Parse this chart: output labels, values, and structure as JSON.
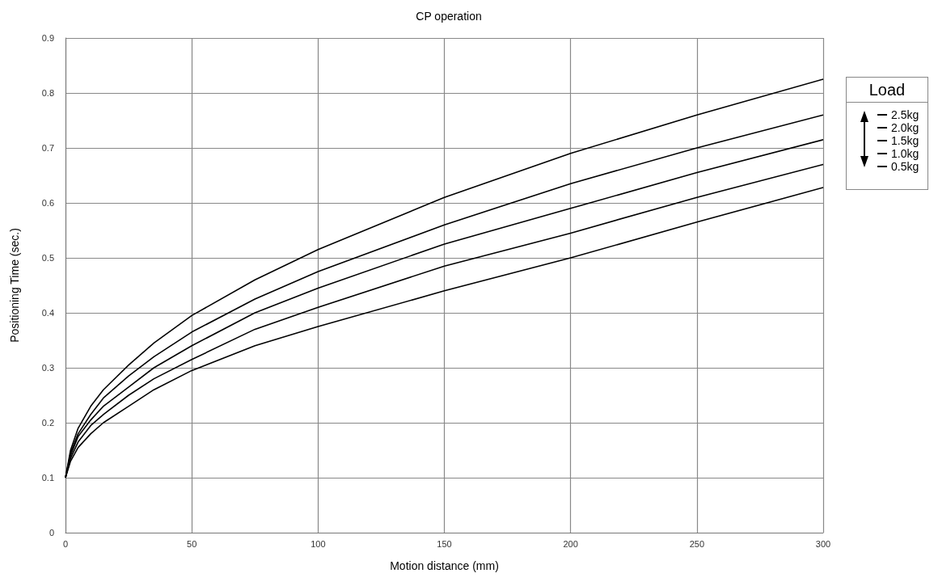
{
  "chart_data": {
    "type": "line",
    "title": "CP operation",
    "xlabel": "Motion distance (mm)",
    "ylabel": "Positioning Time (sec.)",
    "legend_title": "Load",
    "x": [
      0,
      2,
      5,
      10,
      15,
      25,
      35,
      50,
      75,
      100,
      150,
      200,
      250,
      300
    ],
    "series": [
      {
        "name": "2.5kg",
        "color": "#000000",
        "values": [
          0.1,
          0.15,
          0.19,
          0.23,
          0.26,
          0.305,
          0.345,
          0.395,
          0.46,
          0.515,
          0.61,
          0.69,
          0.76,
          0.825
        ]
      },
      {
        "name": "2.0kg",
        "color": "#000000",
        "values": [
          0.1,
          0.145,
          0.18,
          0.215,
          0.245,
          0.285,
          0.32,
          0.365,
          0.425,
          0.475,
          0.56,
          0.635,
          0.7,
          0.76
        ]
      },
      {
        "name": "1.5kg",
        "color": "#000000",
        "values": [
          0.1,
          0.14,
          0.175,
          0.205,
          0.23,
          0.265,
          0.3,
          0.34,
          0.4,
          0.445,
          0.525,
          0.59,
          0.655,
          0.715
        ]
      },
      {
        "name": "1.0kg",
        "color": "#000000",
        "values": [
          0.1,
          0.135,
          0.165,
          0.195,
          0.215,
          0.25,
          0.28,
          0.315,
          0.37,
          0.41,
          0.485,
          0.545,
          0.61,
          0.67
        ]
      },
      {
        "name": "0.5kg",
        "color": "#000000",
        "values": [
          0.1,
          0.13,
          0.155,
          0.18,
          0.2,
          0.23,
          0.26,
          0.295,
          0.34,
          0.375,
          0.44,
          0.5,
          0.565,
          0.628
        ]
      }
    ],
    "xlim": [
      0,
      300
    ],
    "xticks": [
      0,
      50,
      100,
      150,
      200,
      250,
      300
    ],
    "ylim": [
      0,
      0.9
    ],
    "yticks": [
      0,
      0.1,
      0.2,
      0.3,
      0.4,
      0.5,
      0.6,
      0.7,
      0.8,
      0.9
    ],
    "grid": true,
    "legend": "top right",
    "marker": "none",
    "line_style": "solid"
  }
}
